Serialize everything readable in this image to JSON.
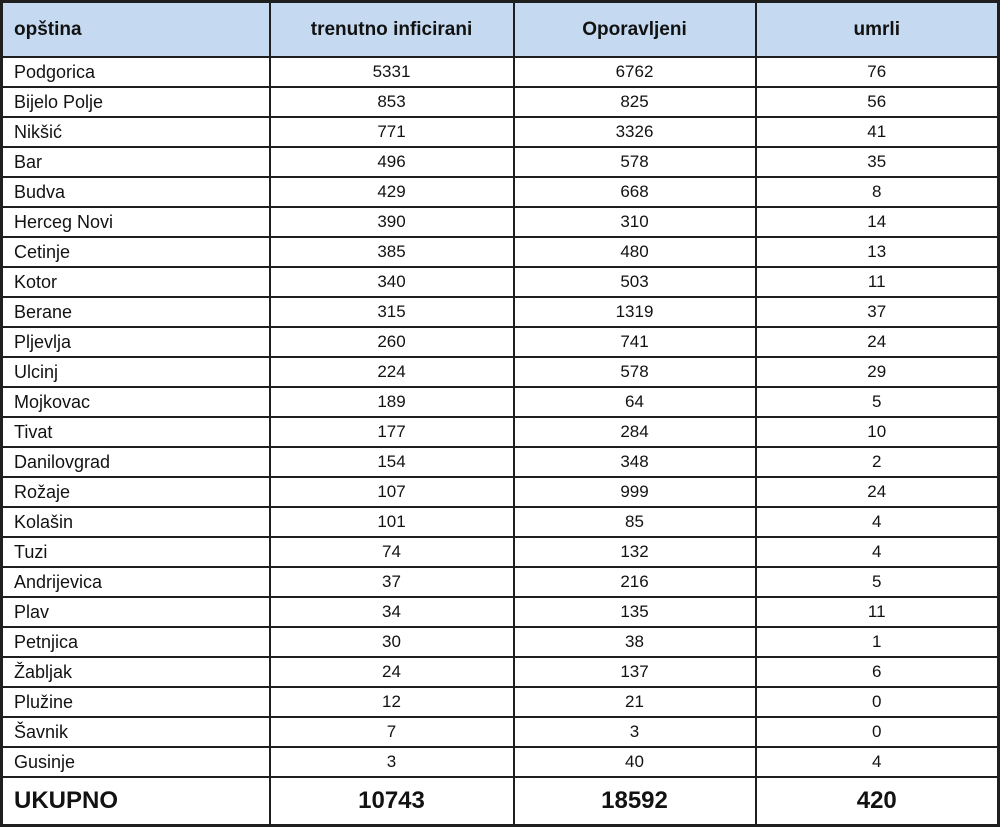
{
  "table": {
    "columns": [
      {
        "key": "municipality",
        "label": "opština"
      },
      {
        "key": "currently_infected",
        "label": "trenutno inficirani"
      },
      {
        "key": "recovered",
        "label": "Oporavljeni"
      },
      {
        "key": "deaths",
        "label": "umrli"
      }
    ],
    "rows": [
      {
        "municipality": "Podgorica",
        "currently_infected": 5331,
        "recovered": 6762,
        "deaths": 76
      },
      {
        "municipality": "Bijelo Polje",
        "currently_infected": 853,
        "recovered": 825,
        "deaths": 56
      },
      {
        "municipality": "Nikšić",
        "currently_infected": 771,
        "recovered": 3326,
        "deaths": 41
      },
      {
        "municipality": "Bar",
        "currently_infected": 496,
        "recovered": 578,
        "deaths": 35
      },
      {
        "municipality": "Budva",
        "currently_infected": 429,
        "recovered": 668,
        "deaths": 8
      },
      {
        "municipality": "Herceg Novi",
        "currently_infected": 390,
        "recovered": 310,
        "deaths": 14
      },
      {
        "municipality": "Cetinje",
        "currently_infected": 385,
        "recovered": 480,
        "deaths": 13
      },
      {
        "municipality": "Kotor",
        "currently_infected": 340,
        "recovered": 503,
        "deaths": 11
      },
      {
        "municipality": "Berane",
        "currently_infected": 315,
        "recovered": 1319,
        "deaths": 37
      },
      {
        "municipality": "Pljevlja",
        "currently_infected": 260,
        "recovered": 741,
        "deaths": 24
      },
      {
        "municipality": "Ulcinj",
        "currently_infected": 224,
        "recovered": 578,
        "deaths": 29
      },
      {
        "municipality": "Mojkovac",
        "currently_infected": 189,
        "recovered": 64,
        "deaths": 5
      },
      {
        "municipality": "Tivat",
        "currently_infected": 177,
        "recovered": 284,
        "deaths": 10
      },
      {
        "municipality": "Danilovgrad",
        "currently_infected": 154,
        "recovered": 348,
        "deaths": 2
      },
      {
        "municipality": "Rožaje",
        "currently_infected": 107,
        "recovered": 999,
        "deaths": 24
      },
      {
        "municipality": "Kolašin",
        "currently_infected": 101,
        "recovered": 85,
        "deaths": 4
      },
      {
        "municipality": "Tuzi",
        "currently_infected": 74,
        "recovered": 132,
        "deaths": 4
      },
      {
        "municipality": "Andrijevica",
        "currently_infected": 37,
        "recovered": 216,
        "deaths": 5
      },
      {
        "municipality": "Plav",
        "currently_infected": 34,
        "recovered": 135,
        "deaths": 11
      },
      {
        "municipality": "Petnjica",
        "currently_infected": 30,
        "recovered": 38,
        "deaths": 1
      },
      {
        "municipality": "Žabljak",
        "currently_infected": 24,
        "recovered": 137,
        "deaths": 6
      },
      {
        "municipality": "Plužine",
        "currently_infected": 12,
        "recovered": 21,
        "deaths": 0
      },
      {
        "municipality": "Šavnik",
        "currently_infected": 7,
        "recovered": 3,
        "deaths": 0
      },
      {
        "municipality": "Gusinje",
        "currently_infected": 3,
        "recovered": 40,
        "deaths": 4
      }
    ],
    "total": {
      "label": "UKUPNO",
      "currently_infected": 10743,
      "recovered": 18592,
      "deaths": 420
    }
  },
  "colors": {
    "header_bg": "#c5d9f1",
    "border": "#1f1f1f"
  }
}
